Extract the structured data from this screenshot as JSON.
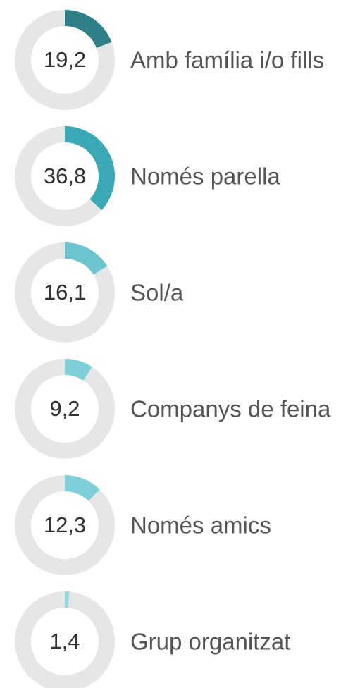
{
  "chart_data": [
    {
      "type": "donut",
      "categories": [
        "Amb família i/o fills"
      ],
      "values": [
        19.2
      ],
      "value_labels": [
        "19,2"
      ],
      "color": "#2e7f87"
    },
    {
      "type": "donut",
      "categories": [
        "Només parella"
      ],
      "values": [
        36.8
      ],
      "value_labels": [
        "36,8"
      ],
      "color": "#3ba8b6"
    },
    {
      "type": "donut",
      "categories": [
        "Sol/a"
      ],
      "values": [
        16.1
      ],
      "value_labels": [
        "16,1"
      ],
      "color": "#6cc4ce"
    },
    {
      "type": "donut",
      "categories": [
        "Companys de feina"
      ],
      "values": [
        9.2
      ],
      "value_labels": [
        "9,2"
      ],
      "color": "#7ecfd8"
    },
    {
      "type": "donut",
      "categories": [
        "Només amics"
      ],
      "values": [
        12.3
      ],
      "value_labels": [
        "12,3"
      ],
      "color": "#7ecfd9"
    },
    {
      "type": "donut",
      "categories": [
        "Grup organitzat"
      ],
      "values": [
        1.4
      ],
      "value_labels": [
        "1,4"
      ],
      "color": "#8fd6de"
    }
  ]
}
